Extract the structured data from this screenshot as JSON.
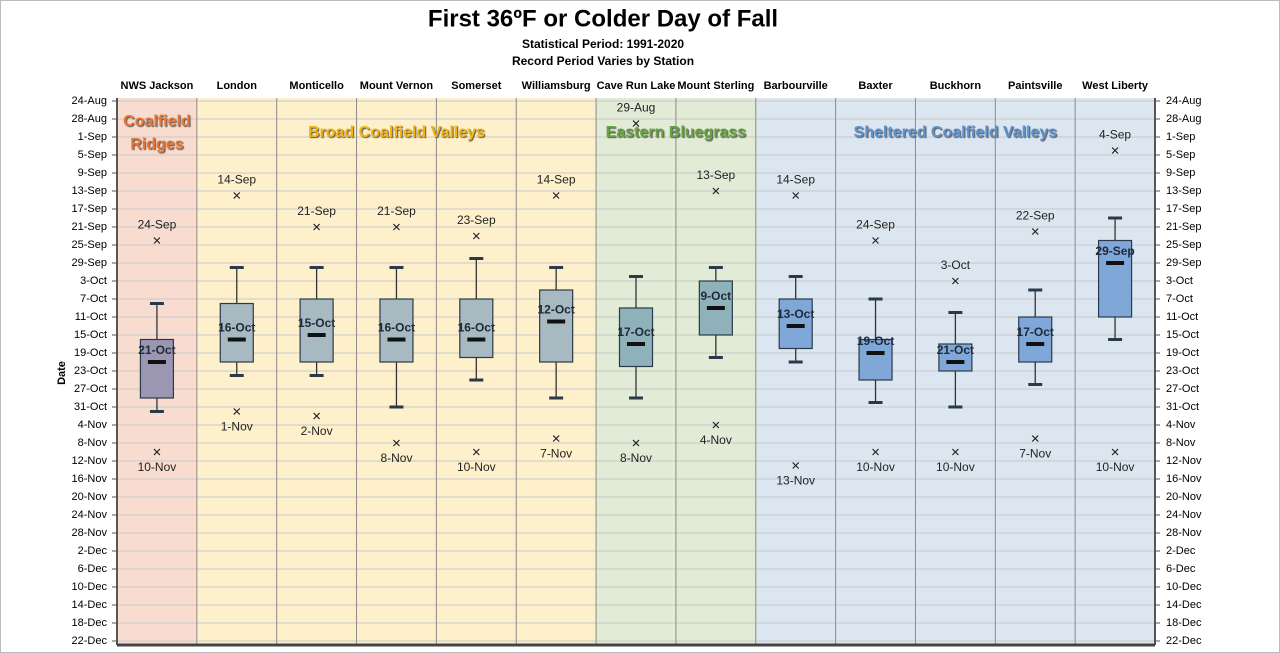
{
  "chart_data": {
    "type": "box",
    "title": "First 36ºF or Colder Day of Fall",
    "subtitle": "Statistical Period: 1991-2020",
    "subtitle2": "Record Period Varies by Station",
    "y_label": "Date",
    "y_inverted": true,
    "ylim": [
      236,
      356
    ],
    "yticks": [
      {
        "value": 236,
        "label": "24-Aug"
      },
      {
        "value": 240,
        "label": "28-Aug"
      },
      {
        "value": 244,
        "label": "1-Sep"
      },
      {
        "value": 248,
        "label": "5-Sep"
      },
      {
        "value": 252,
        "label": "9-Sep"
      },
      {
        "value": 256,
        "label": "13-Sep"
      },
      {
        "value": 260,
        "label": "17-Sep"
      },
      {
        "value": 264,
        "label": "21-Sep"
      },
      {
        "value": 268,
        "label": "25-Sep"
      },
      {
        "value": 272,
        "label": "29-Sep"
      },
      {
        "value": 276,
        "label": "3-Oct"
      },
      {
        "value": 280,
        "label": "7-Oct"
      },
      {
        "value": 284,
        "label": "11-Oct"
      },
      {
        "value": 288,
        "label": "15-Oct"
      },
      {
        "value": 292,
        "label": "19-Oct"
      },
      {
        "value": 296,
        "label": "23-Oct"
      },
      {
        "value": 300,
        "label": "27-Oct"
      },
      {
        "value": 304,
        "label": "31-Oct"
      },
      {
        "value": 308,
        "label": "4-Nov"
      },
      {
        "value": 312,
        "label": "8-Nov"
      },
      {
        "value": 316,
        "label": "12-Nov"
      },
      {
        "value": 320,
        "label": "16-Nov"
      },
      {
        "value": 324,
        "label": "20-Nov"
      },
      {
        "value": 328,
        "label": "24-Nov"
      },
      {
        "value": 332,
        "label": "28-Nov"
      },
      {
        "value": 336,
        "label": "2-Dec"
      },
      {
        "value": 340,
        "label": "6-Dec"
      },
      {
        "value": 344,
        "label": "10-Dec"
      },
      {
        "value": 348,
        "label": "14-Dec"
      },
      {
        "value": 352,
        "label": "18-Dec"
      },
      {
        "value": 356,
        "label": "22-Dec"
      }
    ],
    "grid": true,
    "categories": [
      "NWS Jackson",
      "London",
      "Monticello",
      "Mount Vernon",
      "Somerset",
      "Williamsburg",
      "Cave Run Lake",
      "Mount Sterling",
      "Barbourville",
      "Baxter",
      "Buckhorn",
      "Paintsville",
      "West Liberty"
    ],
    "whisker_low": [
      281,
      273,
      273,
      273,
      271,
      273,
      275,
      273,
      275,
      280,
      283,
      278,
      262
    ],
    "q1": [
      289,
      281,
      280,
      280,
      280,
      278,
      282,
      276,
      280,
      289,
      290,
      284,
      267
    ],
    "median": [
      294,
      289,
      288,
      289,
      289,
      285,
      290,
      282,
      286,
      292,
      294,
      290,
      272
    ],
    "q3": [
      302,
      294,
      294,
      294,
      293,
      294,
      295,
      288,
      291,
      298,
      296,
      294,
      284
    ],
    "whisker_high": [
      305,
      297,
      297,
      304,
      298,
      302,
      302,
      293,
      294,
      303,
      304,
      299,
      289
    ],
    "earliest": [
      267,
      257,
      264,
      264,
      266,
      257,
      241,
      256,
      257,
      267,
      276,
      265,
      247
    ],
    "latest": [
      314,
      305,
      306,
      312,
      314,
      311,
      312,
      308,
      317,
      314,
      314,
      311,
      314
    ],
    "median_labels": [
      "21-Oct",
      "16-Oct",
      "15-Oct",
      "16-Oct",
      "16-Oct",
      "12-Oct",
      "17-Oct",
      "9-Oct",
      "13-Oct",
      "19-Oct",
      "21-Oct",
      "17-Oct",
      "29-Sep"
    ],
    "earliest_labels": [
      "24-Sep",
      "14-Sep",
      "21-Sep",
      "21-Sep",
      "23-Sep",
      "14-Sep",
      "29-Aug",
      "13-Sep",
      "14-Sep",
      "24-Sep",
      "3-Oct",
      "22-Sep",
      "4-Sep"
    ],
    "latest_labels": [
      "10-Nov",
      "1-Nov",
      "2-Nov",
      "8-Nov",
      "10-Nov",
      "7-Nov",
      "8-Nov",
      "4-Nov",
      "13-Nov",
      "10-Nov",
      "10-Nov",
      "7-Nov",
      "10-Nov"
    ],
    "box_colors": [
      "#9b97b3",
      "#a7b9c1",
      "#a7b9c1",
      "#a7b9c1",
      "#a7b9c1",
      "#a7b9c1",
      "#8fb2ba",
      "#8fb2ba",
      "#7fa7d8",
      "#7fa7d8",
      "#7fa7d8",
      "#7fa7d8",
      "#7fa7d8"
    ],
    "regions": [
      {
        "name": "Coalfield Ridges",
        "color": "#f8dccf",
        "label_color": "#e8763a",
        "stations": [
          "NWS Jackson"
        ]
      },
      {
        "name": "Broad Coalfield Valleys",
        "color": "#fdf0cb",
        "label_color": "#f2b412",
        "stations": [
          "London",
          "Monticello",
          "Mount Vernon",
          "Somerset",
          "Williamsburg"
        ]
      },
      {
        "name": "Eastern Bluegrass",
        "color": "#e1ebd6",
        "label_color": "#66a33f",
        "stations": [
          "Cave Run Lake",
          "Mount Sterling"
        ]
      },
      {
        "name": "Sheltered Coalfield Valleys",
        "color": "#dce6f1",
        "label_color": "#5d93cf",
        "stations": [
          "Barbourville",
          "Baxter",
          "Buckhorn",
          "Paintsville",
          "West Liberty"
        ]
      }
    ]
  }
}
